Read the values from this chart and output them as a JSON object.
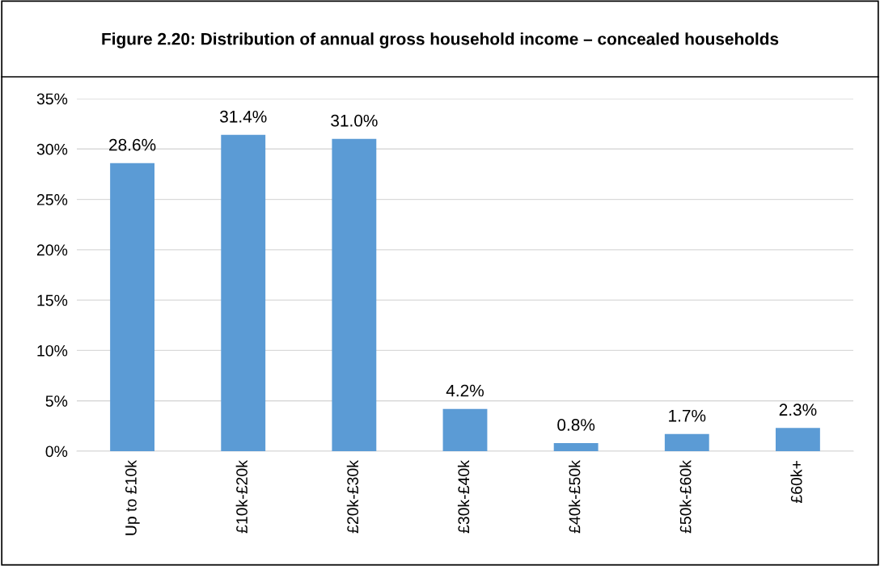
{
  "chart_data": {
    "type": "bar",
    "title": "Figure 2.20: Distribution of annual gross household income – concealed households",
    "categories": [
      "Up to £10k",
      "£10k-£20k",
      "£20k-£30k",
      "£30k-£40k",
      "£40k-£50k",
      "£50k-£60k",
      "£60k+"
    ],
    "values": [
      28.6,
      31.4,
      31.0,
      4.2,
      0.8,
      1.7,
      2.3
    ],
    "value_labels": [
      "28.6%",
      "31.4%",
      "31.0%",
      "4.2%",
      "0.8%",
      "1.7%",
      "2.3%"
    ],
    "color": "#5b9bd5",
    "ylim": [
      0,
      35
    ],
    "yticks": [
      {
        "value": 0,
        "label": "0%"
      },
      {
        "value": 5,
        "label": "5%"
      },
      {
        "value": 10,
        "label": "10%"
      },
      {
        "value": 15,
        "label": "15%"
      },
      {
        "value": 20,
        "label": "20%"
      },
      {
        "value": 25,
        "label": "25%"
      },
      {
        "value": 30,
        "label": "30%"
      },
      {
        "value": 35,
        "label": "35%"
      }
    ],
    "grid": "y"
  }
}
